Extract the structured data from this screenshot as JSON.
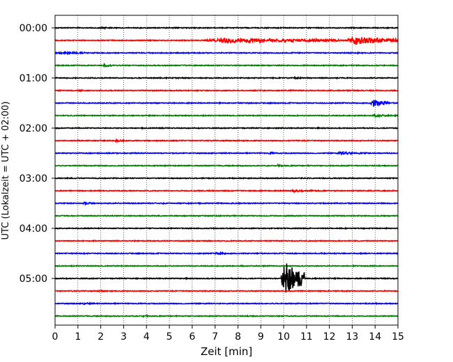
{
  "chart_data": {
    "type": "line",
    "title": "",
    "xlabel": "Zeit  [min]",
    "ylabel": "UTC (Lokalzeit = UTC + 02:00)",
    "xlim": [
      0,
      15
    ],
    "x_ticks": [
      "0",
      "1",
      "2",
      "3",
      "4",
      "5",
      "6",
      "7",
      "8",
      "9",
      "10",
      "11",
      "12",
      "13",
      "14",
      "15"
    ],
    "y_ticks": [
      "00:00",
      "01:00",
      "02:00",
      "03:00",
      "04:00",
      "05:00"
    ],
    "trace_interval_minutes": 15,
    "trace_count": 24,
    "color_cycle": [
      "#000000",
      "#ff0000",
      "#0000ff",
      "#008000"
    ],
    "vertical_grid": "dotted",
    "events": [
      {
        "trace": 0,
        "start": 2.0,
        "end": 2.6,
        "amp": 0.3
      },
      {
        "trace": 1,
        "start": 6.6,
        "end": 12.5,
        "amp": 0.7
      },
      {
        "trace": 1,
        "start": 12.8,
        "end": 15.0,
        "amp": 1.2
      },
      {
        "trace": 2,
        "start": 0.0,
        "end": 1.5,
        "amp": 0.4
      },
      {
        "trace": 2,
        "start": 13.2,
        "end": 13.6,
        "amp": 0.3
      },
      {
        "trace": 3,
        "start": 2.1,
        "end": 2.6,
        "amp": 0.4
      },
      {
        "trace": 4,
        "start": 10.4,
        "end": 10.9,
        "amp": 0.3
      },
      {
        "trace": 5,
        "start": 1.0,
        "end": 1.3,
        "amp": 0.3
      },
      {
        "trace": 6,
        "start": 13.8,
        "end": 14.6,
        "amp": 1.0
      },
      {
        "trace": 7,
        "start": 13.9,
        "end": 14.9,
        "amp": 0.4
      },
      {
        "trace": 9,
        "start": 2.6,
        "end": 3.0,
        "amp": 0.4
      },
      {
        "trace": 10,
        "start": 9.3,
        "end": 9.8,
        "amp": 0.3
      },
      {
        "trace": 10,
        "start": 12.3,
        "end": 13.8,
        "amp": 0.4
      },
      {
        "trace": 11,
        "start": 9.7,
        "end": 10.1,
        "amp": 0.4
      },
      {
        "trace": 13,
        "start": 10.2,
        "end": 11.8,
        "amp": 0.35
      },
      {
        "trace": 14,
        "start": 1.2,
        "end": 1.8,
        "amp": 0.35
      },
      {
        "trace": 14,
        "start": 4.6,
        "end": 5.2,
        "amp": 0.2
      },
      {
        "trace": 18,
        "start": 7.0,
        "end": 7.6,
        "amp": 0.4
      },
      {
        "trace": 20,
        "start": 9.9,
        "end": 10.9,
        "amp": 5.0
      },
      {
        "trace": 21,
        "start": 1.9,
        "end": 2.3,
        "amp": 0.3
      },
      {
        "trace": 22,
        "start": 1.2,
        "end": 1.8,
        "amp": 0.3
      },
      {
        "trace": 23,
        "start": 3.8,
        "end": 4.3,
        "amp": 0.3
      }
    ]
  }
}
